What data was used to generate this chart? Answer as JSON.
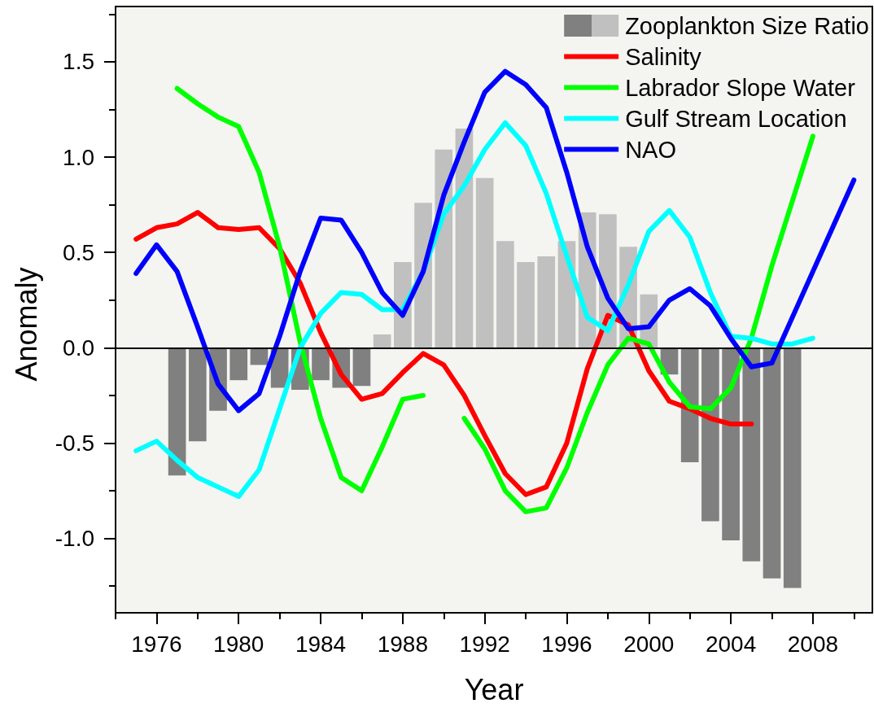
{
  "chart_data": {
    "type": "line",
    "xlabel": "Year",
    "ylabel": "Anomaly",
    "legend": "top right",
    "line_style": "solid",
    "xlim": [
      1974,
      2010.9
    ],
    "xticks": [
      {
        "value": 1974,
        "label": null
      },
      1976,
      {
        "value": 1978,
        "label": null
      },
      1980,
      {
        "value": 1982,
        "label": null
      },
      1984,
      {
        "value": 1986,
        "label": null
      },
      1988,
      {
        "value": 1990,
        "label": null
      },
      1992,
      {
        "value": 1994,
        "label": null
      },
      1996,
      {
        "value": 1998,
        "label": null
      },
      2000,
      {
        "value": 2002,
        "label": null
      },
      2004,
      {
        "value": 2006,
        "label": null
      },
      2008,
      {
        "value": 2010,
        "label": null
      }
    ],
    "ylim": [
      -1.39,
      1.79
    ],
    "yticks": [
      {
        "value": -1.25,
        "label": null
      },
      {
        "value": -1,
        "label": "-1.0"
      },
      {
        "value": -0.75,
        "label": null
      },
      -0.5,
      {
        "value": -0.25,
        "label": null
      },
      {
        "value": 0,
        "label": "0.0"
      },
      {
        "value": 0.25,
        "label": null
      },
      0.5,
      {
        "value": 0.75,
        "label": null
      },
      {
        "value": 1,
        "label": "1.0"
      },
      {
        "value": 1.25,
        "label": null
      },
      1.5,
      {
        "value": 1.75,
        "label": null
      }
    ],
    "ref_lines": [
      {
        "axis": "y",
        "value": 0,
        "color": "#000000"
      }
    ],
    "series": [
      {
        "type": "bar",
        "name": "Zooplankton Size Ratio",
        "x": [
          1977,
          1978,
          1979,
          1980,
          1981,
          1982,
          1983,
          1984,
          1985,
          1986,
          1987,
          1988,
          1989,
          1990,
          1991,
          1992,
          1993,
          1994,
          1995,
          1996,
          1997,
          1998,
          1999,
          2000,
          2001,
          2002,
          2003,
          2004,
          2005,
          2006,
          2007
        ],
        "values": [
          -0.67,
          -0.49,
          -0.33,
          -0.17,
          -0.09,
          -0.21,
          -0.22,
          -0.17,
          -0.21,
          -0.2,
          0.07,
          0.45,
          0.76,
          1.04,
          1.15,
          0.89,
          0.56,
          0.45,
          0.48,
          0.56,
          0.71,
          0.7,
          0.53,
          0.28,
          -0.14,
          -0.6,
          -0.91,
          -1.01,
          -1.12,
          -1.21,
          -1.26
        ],
        "colors": [
          "#808080",
          "#808080",
          "#808080",
          "#808080",
          "#808080",
          "#808080",
          "#808080",
          "#808080",
          "#808080",
          "#808080",
          "#c0c0c0",
          "#c0c0c0",
          "#c0c0c0",
          "#c0c0c0",
          "#c0c0c0",
          "#c0c0c0",
          "#c0c0c0",
          "#c0c0c0",
          "#c0c0c0",
          "#c0c0c0",
          "#c0c0c0",
          "#c0c0c0",
          "#c0c0c0",
          "#c0c0c0",
          "#808080",
          "#808080",
          "#808080",
          "#808080",
          "#808080",
          "#808080",
          "#808080"
        ]
      },
      {
        "name": "Salinity",
        "color": "#ff0000",
        "x": [
          1975,
          1976,
          1977,
          1978,
          1979,
          1980,
          1981,
          1982,
          1983,
          1984,
          1985,
          1986,
          1987,
          1988,
          1989,
          1990,
          1991,
          1992,
          1993,
          1994,
          1995,
          1996,
          1997,
          1998,
          1999,
          2000,
          2001,
          2002,
          2003,
          2004,
          2005
        ],
        "values": [
          0.57,
          0.63,
          0.65,
          0.71,
          0.63,
          0.62,
          0.63,
          0.52,
          0.34,
          0.08,
          -0.14,
          -0.27,
          -0.24,
          -0.13,
          -0.03,
          -0.09,
          -0.25,
          -0.46,
          -0.66,
          -0.77,
          -0.73,
          -0.5,
          -0.11,
          0.17,
          0.12,
          -0.12,
          -0.28,
          -0.32,
          -0.37,
          -0.4,
          -0.4
        ]
      },
      {
        "name": "Labrador Slope Water",
        "color": "#00ff00",
        "x": [
          1977,
          1978,
          1979,
          1980,
          1981,
          1982,
          1983,
          1984,
          1985,
          1986,
          1987,
          1988,
          1989,
          1990,
          1991,
          1992,
          1993,
          1994,
          1995,
          1996,
          1997,
          1998,
          1999,
          2000,
          2001,
          2002,
          2003,
          2004,
          2005,
          2006,
          2007,
          2008
        ],
        "values": [
          1.36,
          1.28,
          1.21,
          1.16,
          0.92,
          0.53,
          0.03,
          -0.37,
          -0.68,
          -0.75,
          -0.52,
          -0.27,
          -0.25,
          null,
          -0.37,
          -0.53,
          -0.75,
          -0.86,
          -0.84,
          -0.63,
          -0.34,
          -0.09,
          0.05,
          0.02,
          -0.18,
          -0.31,
          -0.32,
          -0.21,
          0.05,
          0.43,
          0.77,
          1.11
        ]
      },
      {
        "name": "Gulf Stream Location",
        "color": "#00ffff",
        "x": [
          1975,
          1976,
          1977,
          1978,
          1979,
          1980,
          1981,
          1982,
          1983,
          1984,
          1985,
          1986,
          1987,
          1988,
          1989,
          1990,
          1991,
          1992,
          1993,
          1994,
          1995,
          1996,
          1997,
          1998,
          1999,
          2000,
          2001,
          2002,
          2003,
          2004,
          2005,
          2006,
          2007,
          2008
        ],
        "values": [
          -0.54,
          -0.49,
          -0.59,
          -0.68,
          -0.73,
          -0.78,
          -0.64,
          -0.32,
          0.0,
          0.18,
          0.29,
          0.28,
          0.2,
          0.2,
          0.4,
          0.7,
          0.85,
          1.04,
          1.18,
          1.06,
          0.81,
          0.48,
          0.16,
          0.09,
          0.33,
          0.61,
          0.72,
          0.58,
          0.29,
          0.06,
          0.05,
          0.02,
          0.02,
          0.05
        ]
      },
      {
        "name": "NAO",
        "color": "#0000ff",
        "x": [
          1975,
          1976,
          1977,
          1978,
          1979,
          1980,
          1981,
          1982,
          1983,
          1984,
          1985,
          1986,
          1987,
          1988,
          1989,
          1990,
          1991,
          1992,
          1993,
          1994,
          1995,
          1996,
          1997,
          1998,
          1999,
          2000,
          2001,
          2002,
          2003,
          2004,
          2005,
          2006,
          2007,
          2008,
          2009,
          2010
        ],
        "values": [
          0.39,
          0.54,
          0.4,
          0.11,
          -0.19,
          -0.33,
          -0.24,
          0.06,
          0.4,
          0.68,
          0.67,
          0.5,
          0.29,
          0.17,
          0.4,
          0.8,
          1.08,
          1.34,
          1.45,
          1.38,
          1.26,
          0.92,
          0.53,
          0.26,
          0.1,
          0.11,
          0.25,
          0.31,
          0.22,
          0.05,
          -0.1,
          -0.08,
          0.16,
          0.4,
          0.64,
          0.88
        ]
      }
    ]
  }
}
